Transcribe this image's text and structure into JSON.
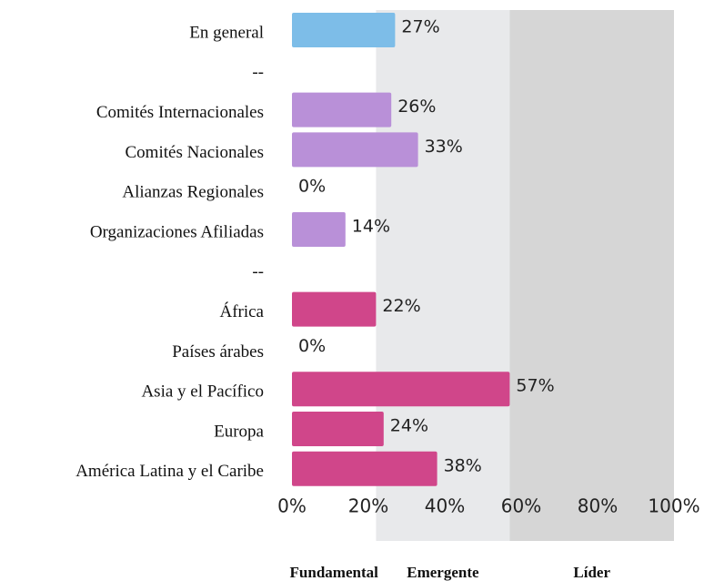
{
  "chart_data": {
    "type": "hbar",
    "categories": [
      "En general",
      "--",
      "Comités Internacionales",
      "Comités Nacionales",
      "Alianzas Regionales",
      "Organizaciones Afiliadas",
      "--",
      "África",
      "Países árabes",
      "Asia y el Pacífico",
      "Europa",
      "América Latina y el Caribe"
    ],
    "values": [
      27,
      null,
      26,
      33,
      0,
      14,
      null,
      22,
      0,
      57,
      24,
      38
    ],
    "value_labels": [
      "27%",
      null,
      "26%",
      "33%",
      "0%",
      "14%",
      null,
      "22%",
      "0%",
      "57%",
      "24%",
      "38%"
    ],
    "colors": [
      "#7dbde8",
      null,
      "#b990d8",
      "#b990d8",
      "#b990d8",
      "#b990d8",
      null,
      "#d0468a",
      "#d0468a",
      "#d0468a",
      "#d0468a",
      "#d0468a"
    ],
    "xlim": [
      0,
      100
    ],
    "xticks": [
      {
        "value": 0,
        "label": "0%"
      },
      {
        "value": 20,
        "label": "20%"
      },
      {
        "value": 40,
        "label": "40%"
      },
      {
        "value": 60,
        "label": "60%"
      },
      {
        "value": 80,
        "label": "80%"
      },
      {
        "value": 100,
        "label": "100%"
      }
    ],
    "bands": [
      {
        "name": "Fundamental",
        "from": 0,
        "to": 22,
        "color": "#ffffff"
      },
      {
        "name": "Emergente",
        "from": 22,
        "to": 57,
        "color": "#e8e9eb"
      },
      {
        "name": "Líder",
        "from": 57,
        "to": 100,
        "color": "#d6d6d6"
      }
    ]
  }
}
